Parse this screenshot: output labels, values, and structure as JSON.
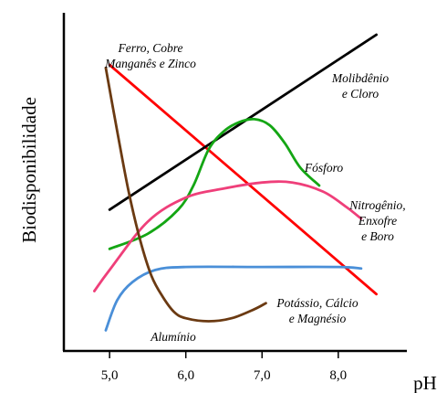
{
  "chart_data": {
    "type": "line",
    "title": "",
    "xlabel": "pH",
    "ylabel": "Biodisponibilidade",
    "x_ticks": [
      "5,0",
      "6,0",
      "7,0",
      "8,0"
    ],
    "tick_values": [
      5.0,
      6.0,
      7.0,
      8.0
    ],
    "xlim": [
      4.4,
      8.9
    ],
    "ylim": [
      0,
      100
    ],
    "grid": false,
    "legend": "none",
    "series": [
      {
        "name": "Ferro, Cobre Manganês e Zinco",
        "label_lines": [
          "Ferro, Cobre",
          "Manganês e Zinco"
        ],
        "color": "#ff0000",
        "points": [
          [
            5.0,
            90
          ],
          [
            8.5,
            14
          ]
        ]
      },
      {
        "name": "Molibdênio e Cloro",
        "label_lines": [
          "Molibdênio",
          "e Cloro"
        ],
        "color": "#000000",
        "points": [
          [
            5.0,
            42
          ],
          [
            8.5,
            100
          ]
        ]
      },
      {
        "name": "Fósforo",
        "label_lines": [
          "Fósforo"
        ],
        "color": "#14a614",
        "points": [
          [
            5.0,
            29
          ],
          [
            5.5,
            34
          ],
          [
            5.9,
            42
          ],
          [
            6.1,
            50
          ],
          [
            6.3,
            62
          ],
          [
            6.5,
            68
          ],
          [
            6.7,
            71
          ],
          [
            6.9,
            72
          ],
          [
            7.1,
            70
          ],
          [
            7.3,
            64
          ],
          [
            7.5,
            56
          ],
          [
            7.75,
            50
          ]
        ]
      },
      {
        "name": "Nitrogênio, Enxofre e Boro",
        "label_lines": [
          "Nitrogênio,",
          "Enxofre",
          "e Boro"
        ],
        "color": "#ef3f7a",
        "points": [
          [
            4.8,
            15
          ],
          [
            5.0,
            22
          ],
          [
            5.5,
            38
          ],
          [
            6.0,
            46
          ],
          [
            6.5,
            49
          ],
          [
            7.0,
            51
          ],
          [
            7.4,
            51
          ],
          [
            7.8,
            48
          ],
          [
            8.1,
            43
          ],
          [
            8.3,
            39
          ]
        ]
      },
      {
        "name": "Potássio, Cálcio e Magnésio",
        "label_lines": [
          "Potássio, Cálcio",
          "e Magnésio"
        ],
        "color": "#4a8fd8",
        "points": [
          [
            4.95,
            2
          ],
          [
            5.1,
            12
          ],
          [
            5.3,
            18
          ],
          [
            5.6,
            22
          ],
          [
            6.0,
            23
          ],
          [
            7.0,
            23
          ],
          [
            8.0,
            23
          ],
          [
            8.3,
            22.5
          ]
        ]
      },
      {
        "name": "Alumínio",
        "label_lines": [
          "Alumínio"
        ],
        "color": "#6b3a12",
        "points": [
          [
            4.95,
            89
          ],
          [
            5.1,
            68
          ],
          [
            5.25,
            48
          ],
          [
            5.4,
            32
          ],
          [
            5.55,
            20
          ],
          [
            5.7,
            13
          ],
          [
            5.85,
            8
          ],
          [
            6.0,
            6
          ],
          [
            6.3,
            5
          ],
          [
            6.6,
            6
          ],
          [
            6.9,
            9
          ],
          [
            7.05,
            11
          ]
        ]
      }
    ]
  }
}
